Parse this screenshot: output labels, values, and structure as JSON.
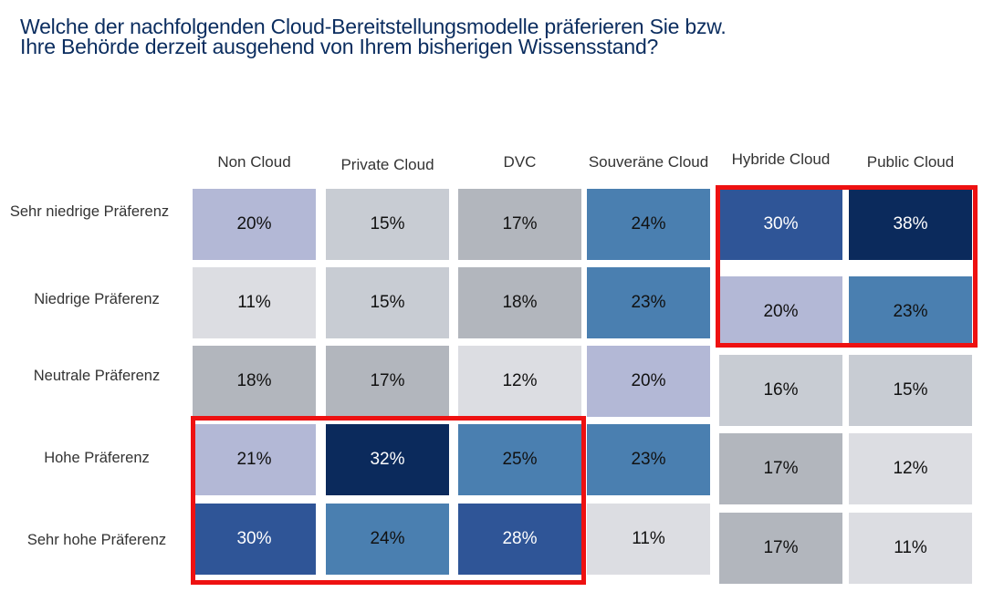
{
  "title": [
    "Welche der nachfolgenden Cloud-Bereitstellungsmodelle präferieren Sie bzw.",
    "Ihre Behörde derzeit ausgehend von Ihrem bisherigen Wissensstand?"
  ],
  "chart_data": {
    "type": "heatmap",
    "columns": [
      "Non Cloud",
      "Private Cloud",
      "DVC",
      "Souveräne Cloud",
      "Hybride Cloud",
      "Public Cloud"
    ],
    "rows": [
      "Sehr niedrige Präferenz",
      "Niedrige Präferenz",
      "Neutrale Präferenz",
      "Hohe Präferenz",
      "Sehr hohe Präferenz"
    ],
    "values": [
      [
        20,
        15,
        17,
        24,
        30,
        38
      ],
      [
        11,
        15,
        18,
        23,
        20,
        23
      ],
      [
        18,
        17,
        12,
        20,
        16,
        15
      ],
      [
        21,
        32,
        25,
        23,
        17,
        12
      ],
      [
        30,
        24,
        28,
        11,
        17,
        11
      ]
    ],
    "labels": [
      [
        "20%",
        "15%",
        "17%",
        "24%",
        "30%",
        "38%"
      ],
      [
        "11%",
        "15%",
        "18%",
        "23%",
        "20%",
        "23%"
      ],
      [
        "18%",
        "17%",
        "12%",
        "20%",
        "16%",
        "15%"
      ],
      [
        "21%",
        "32%",
        "25%",
        "23%",
        "17%",
        "12%"
      ],
      [
        "30%",
        "24%",
        "28%",
        "11%",
        "17%",
        "11%"
      ]
    ],
    "cell_colors": [
      [
        "#b3b8d6",
        "#c8ccd3",
        "#b2b6bd",
        "#4a7fb0",
        "#2f5597",
        "#0b2a5c"
      ],
      [
        "#dcdde2",
        "#c8ccd3",
        "#b2b6bd",
        "#4a7fb0",
        "#b3b8d6",
        "#4a7fb0"
      ],
      [
        "#b2b6bd",
        "#b2b6bd",
        "#dcdde2",
        "#b3b8d6",
        "#c8ccd3",
        "#c8ccd3"
      ],
      [
        "#b3b8d6",
        "#0b2a5c",
        "#4a7fb0",
        "#4a7fb0",
        "#b2b6bd",
        "#dcdde2"
      ],
      [
        "#2f5597",
        "#4a7fb0",
        "#2f5597",
        "#dcdde2",
        "#b2b6bd",
        "#dcdde2"
      ]
    ],
    "highlight_color": "#ee1111",
    "highlights": [
      {
        "rows": [
          "Sehr niedrige Präferenz",
          "Niedrige Präferenz"
        ],
        "columns": [
          "Hybride Cloud",
          "Public Cloud"
        ]
      },
      {
        "rows": [
          "Hohe Präferenz",
          "Sehr hohe Präferenz"
        ],
        "columns": [
          "Non Cloud",
          "Private Cloud",
          "DVC"
        ]
      }
    ]
  }
}
